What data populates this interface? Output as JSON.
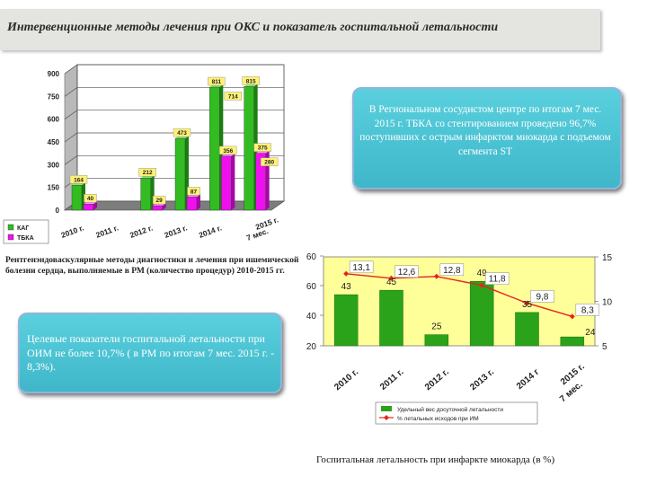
{
  "title": "Интервенционные методы лечения при ОКС  и  показатель госпитальной летальности",
  "callout_center": "В Региональном сосудистом центре по итогам 7 мес. 2015 г. ТБКА со стентированием проведено 96,7% поступивших с острым инфарктом миокарда  с подъемом сегмента ST",
  "callout_goal": "Целевые показатели госпитальной летальности при ОИМ не более 10,7% ( в РМ по итогам 7 мес. 2015 г. - 8,3%).",
  "procedures_note": "Рентгенэндоваскулярные методы диагностики и лечения при ишемической болезни сердца, выполняемые в РМ (количество процедур) 2010-2015 гг.",
  "mortality_caption": "Госпитальная летальность при инфаркте миокарда (в %)",
  "colors": {
    "kag": "#33bb22",
    "tbka": "#ee11ee",
    "plot_bg": "#ffff99",
    "bar_olive": "#2aa31a",
    "line_red": "#e8231f",
    "label_box": "#fff176"
  },
  "chart_data": [
    {
      "type": "bar",
      "categories": [
        "2010 г.",
        "2011 г.",
        "2012 г.",
        "2013 г.",
        "2014 г.",
        "7 мес. 2015 г."
      ],
      "series": [
        {
          "name": "КАГ",
          "values": [
            164,
            0,
            212,
            473,
            811,
            815
          ],
          "labels": [
            "164",
            "",
            "212",
            "473",
            "811",
            "815"
          ]
        },
        {
          "name": "ТБКА",
          "values": [
            40,
            0,
            29,
            87,
            356,
            375
          ],
          "labels": [
            "40",
            "",
            "29",
            "87",
            "356",
            "375"
          ]
        }
      ],
      "extra_label": {
        "category": 4,
        "value": 714,
        "label": "714"
      },
      "extra_label_2": {
        "category": 5,
        "value": 280,
        "label": "280"
      },
      "yticks": [
        "0",
        "150",
        "300",
        "450",
        "600",
        "750",
        "900"
      ],
      "ylim": [
        0,
        900
      ],
      "legend": "bottom-left"
    },
    {
      "type": "bar",
      "categories": [
        "2010 г.",
        "2011 г.",
        "2012 г.",
        "2013 г.",
        "2014 г",
        "7 мес. 2015 г."
      ],
      "series": [
        {
          "name": "Удельный вес досуточной летальности",
          "values": [
            43,
            45,
            25,
            49,
            35,
            24
          ],
          "labels": [
            "43",
            "45",
            "25",
            "49",
            "35",
            "24"
          ]
        },
        {
          "name": "% летальных  исходов  при ИМ",
          "values": [
            13.1,
            12.6,
            12.8,
            11.8,
            9.8,
            8.3
          ],
          "labels": [
            "13,1",
            "12,6",
            "12,8",
            "11,8",
            "9,8",
            "8,3"
          ]
        }
      ],
      "yticks_left": [
        "20",
        "40",
        "60",
        "60"
      ],
      "yticks_right": [
        "5",
        "10",
        "15"
      ],
      "ylim_left": [
        20,
        60
      ],
      "ylim_right": [
        5,
        15
      ],
      "legend": "bottom"
    }
  ]
}
